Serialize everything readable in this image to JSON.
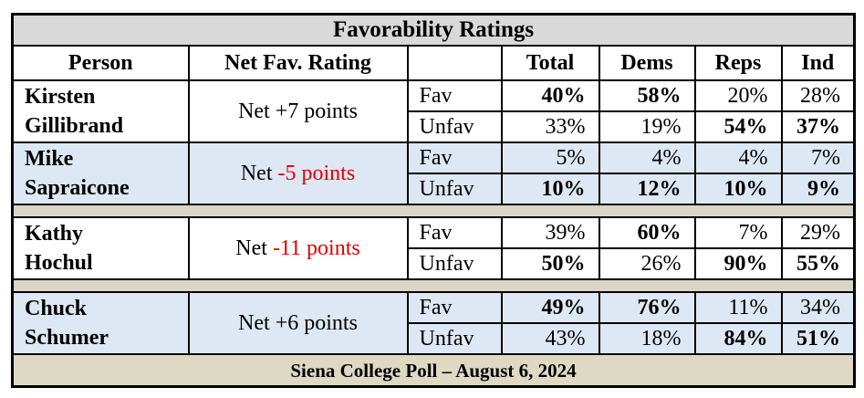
{
  "table": {
    "title": "Favorability Ratings",
    "header": [
      "Person",
      "Net Fav. Rating",
      "Total",
      "Dems",
      "Reps",
      "Ind"
    ],
    "groups": [
      [
        {
          "name": "Kirsten Gillibrand",
          "shaded": false,
          "net": {
            "prefix": "Net",
            "value": "+7 points",
            "negative": false
          },
          "rows": [
            {
              "label": "Fav",
              "cells": [
                {
                  "text": "40%",
                  "bold": true
                },
                {
                  "text": "58%",
                  "bold": true
                },
                {
                  "text": "20%",
                  "bold": false
                },
                {
                  "text": "28%",
                  "bold": false
                }
              ]
            },
            {
              "label": "Unfav",
              "cells": [
                {
                  "text": "33%",
                  "bold": false
                },
                {
                  "text": "19%",
                  "bold": false
                },
                {
                  "text": "54%",
                  "bold": true
                },
                {
                  "text": "37%",
                  "bold": true
                }
              ]
            }
          ]
        },
        {
          "name": "Mike Sapraicone",
          "shaded": true,
          "net": {
            "prefix": "Net",
            "value": "-5 points",
            "negative": true
          },
          "rows": [
            {
              "label": "Fav",
              "cells": [
                {
                  "text": "5%",
                  "bold": false
                },
                {
                  "text": "4%",
                  "bold": false
                },
                {
                  "text": "4%",
                  "bold": false
                },
                {
                  "text": "7%",
                  "bold": false
                }
              ]
            },
            {
              "label": "Unfav",
              "cells": [
                {
                  "text": "10%",
                  "bold": true
                },
                {
                  "text": "12%",
                  "bold": true
                },
                {
                  "text": "10%",
                  "bold": true
                },
                {
                  "text": "9%",
                  "bold": true
                }
              ]
            }
          ]
        }
      ],
      [
        {
          "name": "Kathy Hochul",
          "shaded": false,
          "net": {
            "prefix": "Net",
            "value": "-11 points",
            "negative": true
          },
          "rows": [
            {
              "label": "Fav",
              "cells": [
                {
                  "text": "39%",
                  "bold": false
                },
                {
                  "text": "60%",
                  "bold": true
                },
                {
                  "text": "7%",
                  "bold": false
                },
                {
                  "text": "29%",
                  "bold": false
                }
              ]
            },
            {
              "label": "Unfav",
              "cells": [
                {
                  "text": "50%",
                  "bold": true
                },
                {
                  "text": "26%",
                  "bold": false
                },
                {
                  "text": "90%",
                  "bold": true
                },
                {
                  "text": "55%",
                  "bold": true
                }
              ]
            }
          ]
        }
      ],
      [
        {
          "name": "Chuck Schumer",
          "shaded": true,
          "net": {
            "prefix": "Net",
            "value": "+6 points",
            "negative": false
          },
          "rows": [
            {
              "label": "Fav",
              "cells": [
                {
                  "text": "49%",
                  "bold": true
                },
                {
                  "text": "76%",
                  "bold": true
                },
                {
                  "text": "11%",
                  "bold": false
                },
                {
                  "text": "34%",
                  "bold": false
                }
              ]
            },
            {
              "label": "Unfav",
              "cells": [
                {
                  "text": "43%",
                  "bold": false
                },
                {
                  "text": "18%",
                  "bold": false
                },
                {
                  "text": "84%",
                  "bold": true
                },
                {
                  "text": "51%",
                  "bold": true
                }
              ]
            }
          ]
        }
      ]
    ],
    "footer": "Siena College Poll – August 6, 2024"
  }
}
